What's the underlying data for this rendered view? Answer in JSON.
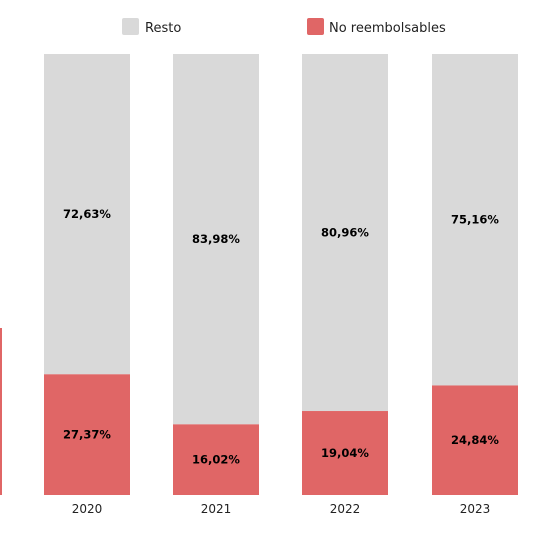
{
  "chart_data": {
    "type": "bar",
    "stacked": true,
    "normalized_percent": true,
    "categories": [
      "2020",
      "2021",
      "2022",
      "2023"
    ],
    "series": [
      {
        "name": "No reembolsables",
        "color": "#e06666",
        "values": [
          27.37,
          16.02,
          19.04,
          24.84
        ],
        "labels": [
          "27,37%",
          "16,02%",
          "19,04%",
          "24,84%"
        ]
      },
      {
        "name": "Resto",
        "color": "#d9d9d9",
        "values": [
          72.63,
          83.98,
          80.96,
          75.16
        ],
        "labels": [
          "72,63%",
          "83,98%",
          "80,96%",
          "75,16%"
        ]
      }
    ],
    "legend": {
      "position": "top",
      "entries": [
        {
          "label": "Resto",
          "color": "#d9d9d9"
        },
        {
          "label": "No reembolsables",
          "color": "#e06666"
        }
      ]
    },
    "partial_left_bar": {
      "note_color": "#e06666"
    },
    "ylim": [
      0,
      100
    ],
    "grid": false,
    "title": "",
    "xlabel": "",
    "ylabel": ""
  }
}
